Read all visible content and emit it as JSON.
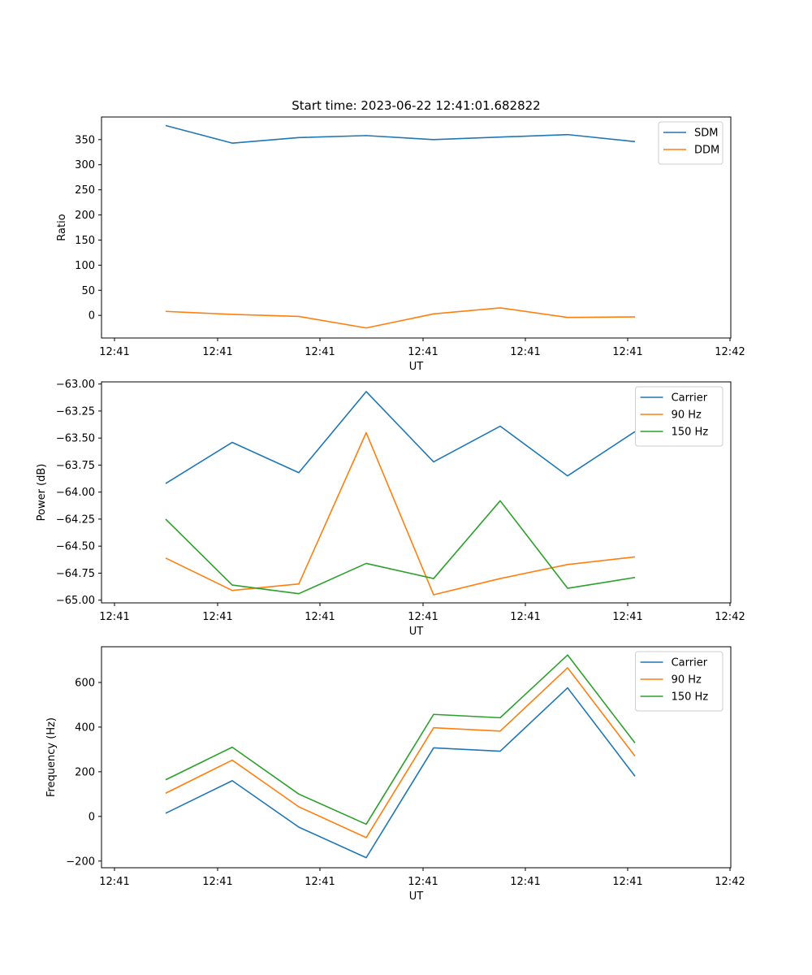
{
  "title": "Start time: 2023-06-22 12:41:01.682822",
  "chart_data": [
    {
      "type": "line",
      "xlabel": "UT",
      "ylabel": "Ratio",
      "x_ticks": [
        "12:41",
        "12:41",
        "12:41",
        "12:41",
        "12:41",
        "12:41",
        "12:41"
      ],
      "ylim": [
        -45,
        395
      ],
      "y_ticks": [
        0,
        50,
        100,
        150,
        200,
        250,
        300,
        350
      ],
      "y_tick_labels": [
        "0",
        "50",
        "100",
        "150",
        "200",
        "250",
        "300",
        "350"
      ],
      "legend": "top-right",
      "grid": false,
      "series": [
        {
          "name": "SDM",
          "color": "#1f77b4",
          "values": [
            378,
            343,
            354,
            358,
            350,
            355,
            360,
            346
          ]
        },
        {
          "name": "DDM",
          "color": "#ff7f0e",
          "values": [
            8,
            2,
            -2,
            -25,
            3,
            15,
            -4,
            -3
          ]
        }
      ]
    },
    {
      "type": "line",
      "xlabel": "UT",
      "ylabel": "Power (dB)",
      "x_ticks": [
        "12:41",
        "12:41",
        "12:41",
        "12:41",
        "12:41",
        "12:41",
        "12:41"
      ],
      "ylim": [
        -65.025,
        -62.98
      ],
      "y_ticks": [
        -65.0,
        -64.75,
        -64.5,
        -64.25,
        -64.0,
        -63.75,
        -63.5,
        -63.25,
        -63.0
      ],
      "y_tick_labels": [
        "−65.00",
        "−64.75",
        "−64.50",
        "−64.25",
        "−64.00",
        "−63.75",
        "−63.50",
        "−63.25",
        "−63.00"
      ],
      "legend": "top-right",
      "grid": false,
      "series": [
        {
          "name": "Carrier",
          "color": "#1f77b4",
          "values": [
            -63.92,
            -63.54,
            -63.82,
            -63.07,
            -63.72,
            -63.39,
            -63.85,
            -63.44
          ]
        },
        {
          "name": "90 Hz",
          "color": "#ff7f0e",
          "values": [
            -64.61,
            -64.91,
            -64.85,
            -63.45,
            -64.95,
            -64.8,
            -64.67,
            -64.6
          ]
        },
        {
          "name": "150 Hz",
          "color": "#2ca02c",
          "values": [
            -64.25,
            -64.86,
            -64.94,
            -64.66,
            -64.8,
            -64.08,
            -64.89,
            -64.79
          ]
        }
      ]
    },
    {
      "type": "line",
      "xlabel": "UT",
      "ylabel": "Frequency (Hz)",
      "x_ticks": [
        "12:41",
        "12:41",
        "12:41",
        "12:41",
        "12:41",
        "12:41",
        "12:41"
      ],
      "ylim": [
        -230,
        760
      ],
      "y_ticks": [
        -200,
        0,
        200,
        400,
        600
      ],
      "y_tick_labels": [
        "−200",
        "0",
        "200",
        "400",
        "600"
      ],
      "legend": "top-right",
      "grid": false,
      "series": [
        {
          "name": "Carrier",
          "color": "#1f77b4",
          "values": [
            14,
            160,
            -48,
            -185,
            307,
            292,
            576,
            180
          ]
        },
        {
          "name": "90 Hz",
          "color": "#ff7f0e",
          "values": [
            104,
            252,
            43,
            -95,
            397,
            382,
            666,
            270
          ]
        },
        {
          "name": "150 Hz",
          "color": "#2ca02c",
          "values": [
            164,
            310,
            100,
            -35,
            457,
            442,
            723,
            329
          ]
        }
      ]
    }
  ],
  "x_last_tick": "12:42"
}
